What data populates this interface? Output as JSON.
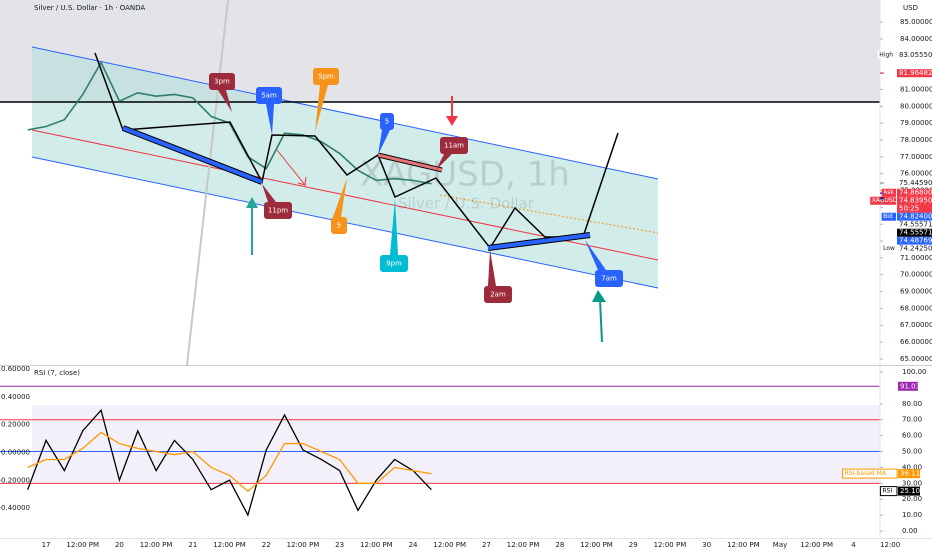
{
  "header": {
    "title": "Silver / U.S. Dollar · 1h · OANDA",
    "currency": "USD",
    "watermark": "XAGUSD, 1h",
    "watermark_sub": "Silver / U.S. Dollar"
  },
  "annotations": [
    "3pm",
    "5am",
    "5pm",
    "5",
    "11am",
    "11pm",
    "5",
    "9pm",
    "2am",
    "7am"
  ],
  "chart_data": [
    {
      "type": "line",
      "categories": [
        null,
        "17",
        null,
        "12:00 PM",
        null,
        "20",
        null,
        "12:00 PM",
        null,
        "21",
        null,
        "12:00 PM",
        null,
        "22",
        null,
        "12:00 PM",
        null,
        "23",
        null,
        "12:00 PM",
        null,
        "24",
        null,
        "12:00 PM",
        null,
        "27",
        null,
        "12:00 PM",
        null,
        "28",
        null,
        "12:00 PM",
        null,
        "29",
        null,
        "12:00 PM",
        null,
        "30",
        null,
        "12:00 PM",
        null,
        "May",
        null,
        "12:00 PM",
        null,
        "4",
        null,
        "12:00"
      ],
      "series": [
        {
          "color": "#2e7d6e",
          "values": [
            78.6,
            78.8,
            79.2,
            80.7,
            82.6,
            80.3,
            80.8,
            80.6,
            80.7,
            80.5,
            79.4,
            79.0,
            77.0,
            76.3,
            78.4,
            78.3,
            77.9,
            77.2,
            76.2,
            75.6,
            75.7,
            75.6,
            75.4,
            null,
            null,
            null,
            null,
            null,
            null,
            null,
            null,
            null,
            null,
            null,
            null,
            null,
            null,
            null,
            null,
            null,
            null,
            null,
            null,
            null,
            null,
            null,
            null,
            null
          ]
        }
      ],
      "ylim": [
        64.64,
        86.31
      ],
      "yticks": [
        {
          "value": 65,
          "label": "65.00000"
        },
        {
          "value": 66,
          "label": "66.00000"
        },
        {
          "value": 67,
          "label": "67.00000"
        },
        {
          "value": 68,
          "label": "68.00000"
        },
        {
          "value": 69,
          "label": "69.00000"
        },
        {
          "value": 70,
          "label": "70.00000"
        },
        {
          "value": 71,
          "label": "71.00000"
        },
        {
          "value": 72,
          "label": "72.00000"
        },
        {
          "value": 73,
          "label": "73.00000"
        },
        {
          "value": 74,
          "label": "74.00000"
        },
        {
          "value": 75,
          "label": "75.00000"
        },
        {
          "value": 76,
          "label": "76.00000"
        },
        {
          "value": 77,
          "label": "77.00000"
        },
        {
          "value": 78,
          "label": "78.00000"
        },
        {
          "value": 79,
          "label": "79.00000"
        },
        {
          "value": 80,
          "label": "80.00000"
        },
        {
          "value": 81,
          "label": "81.00000"
        },
        {
          "value": 82,
          "label": "82.00000"
        },
        {
          "value": 83,
          "label": "83.00000"
        },
        {
          "value": 84,
          "label": "84.00000"
        },
        {
          "value": 85,
          "label": "85.00000"
        }
      ],
      "price_labels": [
        {
          "value": 83.0555,
          "label": "83.05550",
          "tag": "High",
          "color": "#ffffff",
          "text_color": "#131722",
          "tag_color": "#ffffff"
        },
        {
          "value": 81.96482,
          "label": "81.96482",
          "color": "#f23645",
          "text_color": "#ffffff"
        },
        {
          "value": 75.4459,
          "label": "75.44590",
          "color": "#ffffff",
          "text_color": "#131722"
        },
        {
          "value": 74.868,
          "label": "74.86800",
          "tag": "Ask",
          "color": "#f23645",
          "text_color": "#ffffff",
          "tag_color": "#f23645"
        },
        {
          "value": 74.8395,
          "label": "74.83950",
          "tag": "XAGUSD",
          "countdown": "50:25",
          "color": "#f23645",
          "text_color": "#ffffff",
          "tag_color": "#f23645"
        },
        {
          "value": 74.824,
          "label": "74.82400",
          "tag": "Bid",
          "color": "#2962ff",
          "text_color": "#ffffff",
          "tag_color": "#2962ff"
        },
        {
          "value": 74.55571,
          "label": "74.55571",
          "color": "#ffffff",
          "text_color": "#131722"
        },
        {
          "value": 74.55571,
          "label": "74.55571",
          "color": "#000000",
          "text_color": "#ffffff"
        },
        {
          "value": 74.48769,
          "label": "74.48769",
          "color": "#2962ff",
          "text_color": "#ffffff"
        },
        {
          "value": 74.2425,
          "label": "74.24250",
          "tag": "Low",
          "color": "#ffffff",
          "text_color": "#131722",
          "tag_color": "#ffffff"
        }
      ]
    },
    {
      "type": "line",
      "title": "RSI (7, close)",
      "series": [
        {
          "name": "RSI",
          "color": "#000000",
          "values": [
            26,
            57,
            38,
            63,
            76,
            32,
            63,
            38,
            57,
            45,
            26,
            32,
            10,
            51,
            73,
            51,
            45,
            38,
            13,
            32,
            45,
            38,
            26,
            null,
            null,
            null,
            null,
            null,
            null,
            null,
            null,
            null,
            null,
            null,
            null,
            null,
            null,
            null,
            null,
            null,
            null,
            null,
            null,
            null,
            null,
            null,
            null,
            null
          ],
          "last": {
            "value": 25.1,
            "label": "25.10"
          }
        },
        {
          "name": "RSI-based MA",
          "color": "#ff9800",
          "values": [
            40,
            45,
            45,
            52,
            62,
            55,
            52,
            50,
            48,
            50,
            40,
            35,
            25,
            35,
            55,
            55,
            50,
            45,
            30,
            30,
            40,
            38,
            36,
            null,
            null,
            null,
            null,
            null,
            null,
            null,
            null,
            null,
            null,
            null,
            null,
            null,
            null,
            null,
            null,
            null,
            null,
            null,
            null,
            null,
            null,
            null,
            null,
            null
          ],
          "last": {
            "value": 36.11,
            "label": "36.11"
          }
        }
      ],
      "ylim": [
        -4.4,
        103.8
      ],
      "yticks": [
        {
          "value": 0,
          "label": "0.00"
        },
        {
          "value": 10,
          "label": "10.00"
        },
        {
          "value": 20,
          "label": "20.00"
        },
        {
          "value": 30,
          "label": "30.00"
        },
        {
          "value": 40,
          "label": "40.00"
        },
        {
          "value": 50,
          "label": "50.00"
        },
        {
          "value": 60,
          "label": "60.00"
        },
        {
          "value": 70,
          "label": "70.00"
        },
        {
          "value": 80,
          "label": "80.00"
        },
        {
          "value": 100,
          "label": "100.00"
        }
      ],
      "y2lim": [
        -0.614,
        0.621
      ],
      "y2ticks": [
        {
          "value": 0.6,
          "label": "0.60000"
        },
        {
          "value": 0.4,
          "label": "0.40000"
        },
        {
          "value": 0.2,
          "label": "0.20000"
        },
        {
          "value": 0,
          "label": "0.00000"
        },
        {
          "value": -0.2,
          "label": "-0.20000"
        },
        {
          "value": -0.4,
          "label": "-0.40000"
        }
      ],
      "levels": [
        {
          "value": 70,
          "color": "#f23645"
        },
        {
          "value": 50,
          "color": "#2962ff"
        },
        {
          "value": 30,
          "color": "#f23645"
        },
        {
          "value": 91.03,
          "label": "91.03",
          "color": "#9c27b0"
        }
      ]
    }
  ]
}
